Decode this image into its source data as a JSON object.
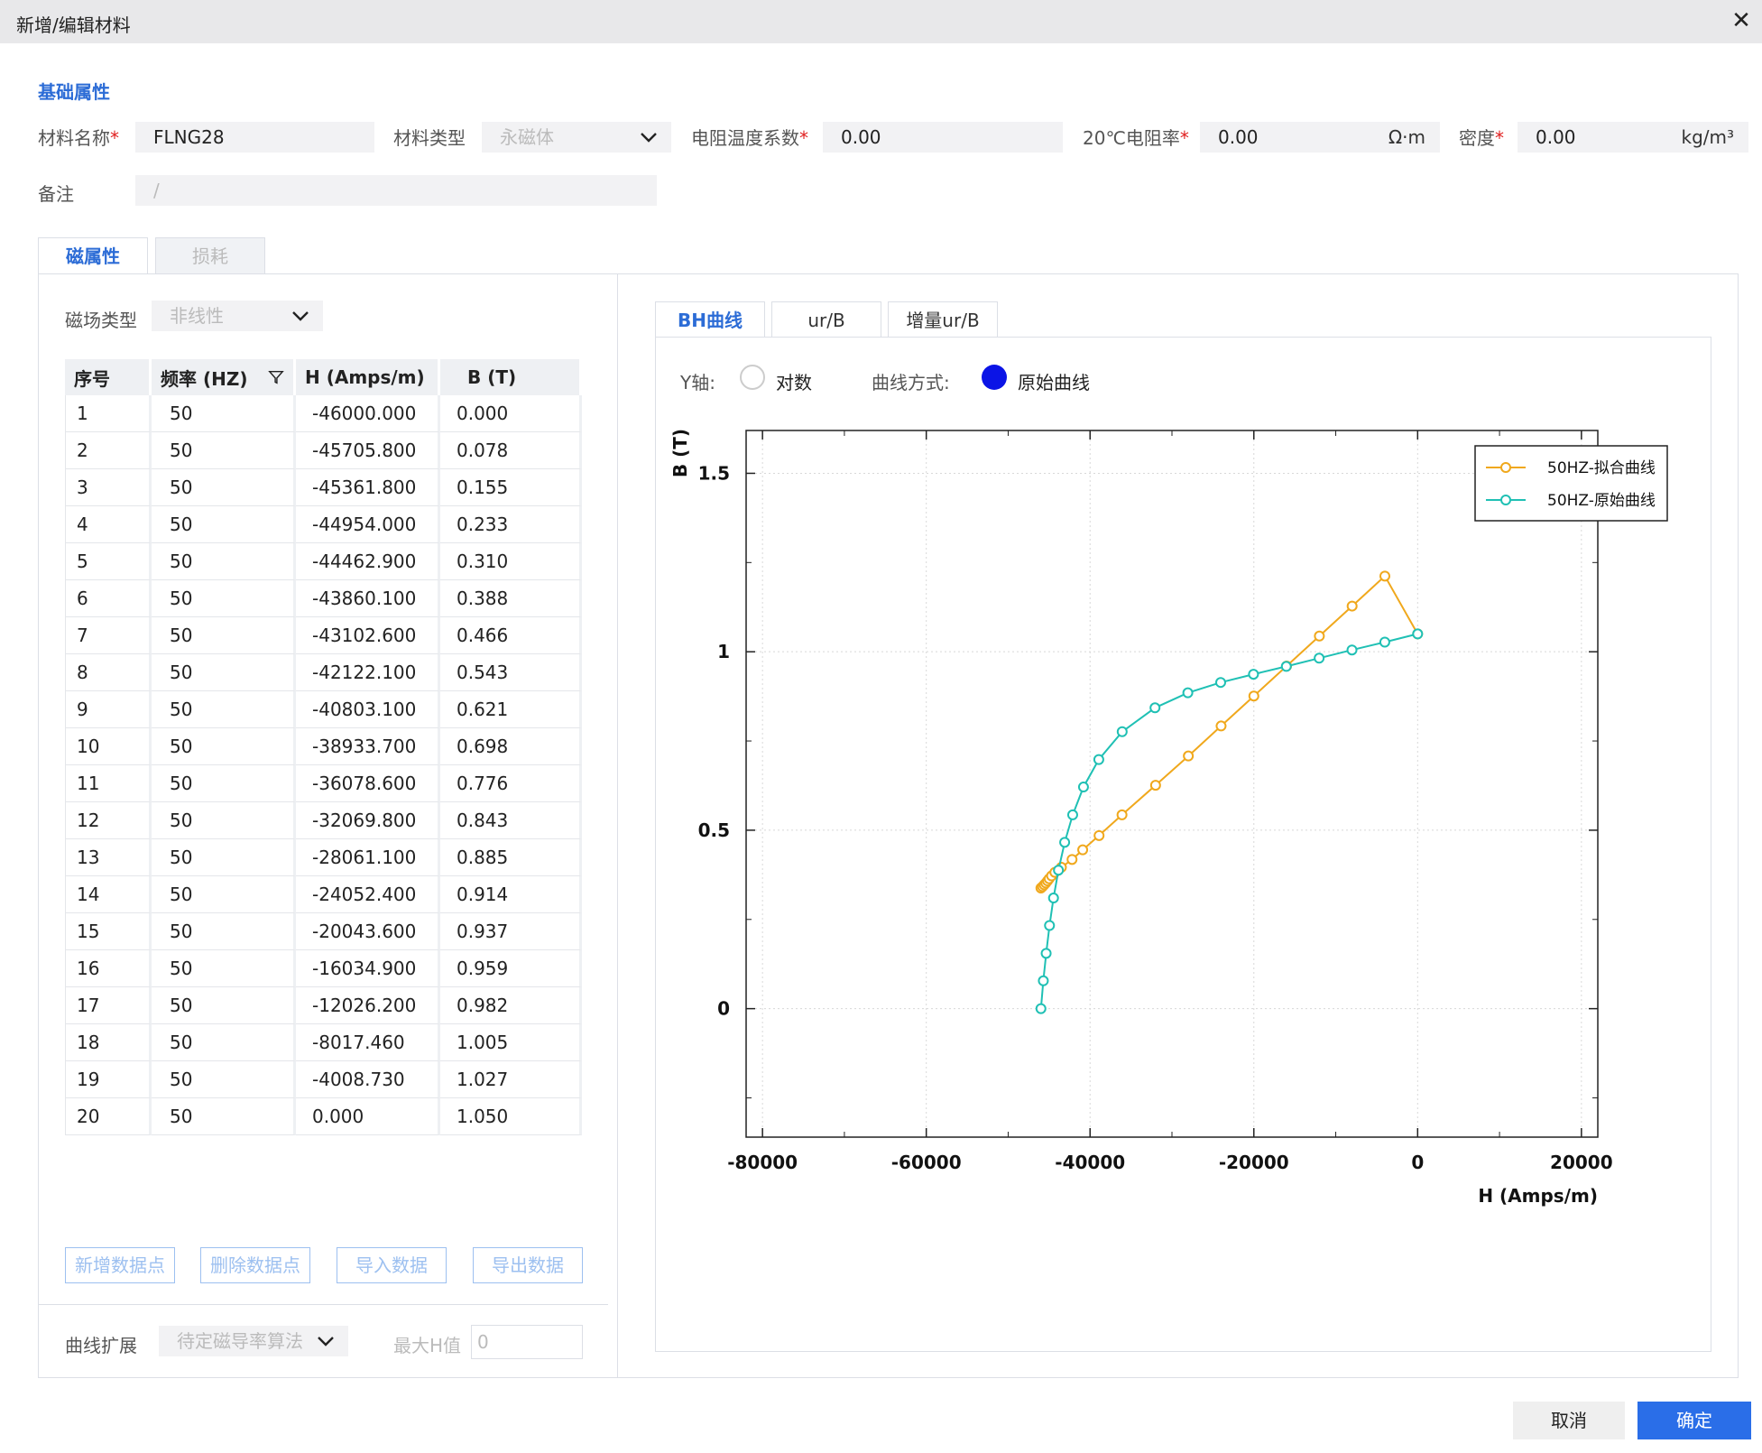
{
  "window": {
    "title": "新增/编辑材料",
    "close_symbol": "✕"
  },
  "basic": {
    "section_title": "基础属性",
    "material_name": {
      "label": "材料名称",
      "required": "*",
      "value": "FLNG28"
    },
    "material_type": {
      "label": "材料类型",
      "value": "永磁体"
    },
    "temp_coeff": {
      "label": "电阻温度系数",
      "required": "*",
      "value": "0.00"
    },
    "resistivity": {
      "label": "20℃电阻率",
      "required": "*",
      "value": "0.00",
      "unit": "Ω·m"
    },
    "density": {
      "label": "密度",
      "required": "*",
      "value": "0.00",
      "unit": "kg/m³"
    },
    "remark": {
      "label": "备注",
      "placeholder": "/"
    }
  },
  "tabs": [
    {
      "label": "磁属性"
    },
    {
      "label": "损耗"
    }
  ],
  "magnetic": {
    "field_type_label": "磁场类型",
    "field_type_value": "非线性",
    "table": {
      "headers": [
        "序号",
        "频率 (HZ)",
        "H (Amps/m)",
        "B (T)"
      ],
      "rows": [
        [
          "1",
          "50",
          "-46000.000",
          "0.000"
        ],
        [
          "2",
          "50",
          "-45705.800",
          "0.078"
        ],
        [
          "3",
          "50",
          "-45361.800",
          "0.155"
        ],
        [
          "4",
          "50",
          "-44954.000",
          "0.233"
        ],
        [
          "5",
          "50",
          "-44462.900",
          "0.310"
        ],
        [
          "6",
          "50",
          "-43860.100",
          "0.388"
        ],
        [
          "7",
          "50",
          "-43102.600",
          "0.466"
        ],
        [
          "8",
          "50",
          "-42122.100",
          "0.543"
        ],
        [
          "9",
          "50",
          "-40803.100",
          "0.621"
        ],
        [
          "10",
          "50",
          "-38933.700",
          "0.698"
        ],
        [
          "11",
          "50",
          "-36078.600",
          "0.776"
        ],
        [
          "12",
          "50",
          "-32069.800",
          "0.843"
        ],
        [
          "13",
          "50",
          "-28061.100",
          "0.885"
        ],
        [
          "14",
          "50",
          "-24052.400",
          "0.914"
        ],
        [
          "15",
          "50",
          "-20043.600",
          "0.937"
        ],
        [
          "16",
          "50",
          "-16034.900",
          "0.959"
        ],
        [
          "17",
          "50",
          "-12026.200",
          "0.982"
        ],
        [
          "18",
          "50",
          "-8017.460",
          "1.005"
        ],
        [
          "19",
          "50",
          "-4008.730",
          "1.027"
        ],
        [
          "20",
          "50",
          "0.000",
          "1.050"
        ]
      ]
    },
    "buttons": {
      "add": "新增数据点",
      "delete": "删除数据点",
      "import": "导入数据",
      "export": "导出数据"
    },
    "curve_ext_label": "曲线扩展",
    "curve_ext_value": "待定磁导率算法",
    "max_h_label": "最大H值",
    "max_h_placeholder": "0"
  },
  "chart_tabs": [
    {
      "label": "BH曲线"
    },
    {
      "label": "ur/B"
    },
    {
      "label": "增量ur/B"
    }
  ],
  "chart_options": {
    "y_axis_label": "Y轴:",
    "y_axis_option": "对数",
    "curve_mode_label": "曲线方式:",
    "curve_mode_option": "原始曲线"
  },
  "chart_data": {
    "type": "line",
    "xlabel": "H (Amps/m)",
    "ylabel": "B (T)",
    "xlim": [
      -82000,
      22000
    ],
    "ylim": [
      -0.36,
      1.62
    ],
    "xticks": [
      -80000,
      -60000,
      -40000,
      -20000,
      0,
      20000
    ],
    "yticks": [
      0,
      0.5,
      1,
      1.5
    ],
    "ytick_labels": [
      "0",
      "0.5",
      "1",
      "1.5"
    ],
    "grid": true,
    "legend_position": "top-right",
    "series": [
      {
        "name": "50HZ-拟合曲线",
        "color": "#f0a81c",
        "points": [
          [
            -46000,
            0.338
          ],
          [
            -45800,
            0.342
          ],
          [
            -45600,
            0.347
          ],
          [
            -45400,
            0.352
          ],
          [
            -45200,
            0.358
          ],
          [
            -45000,
            0.364
          ],
          [
            -44700,
            0.372
          ],
          [
            -44300,
            0.382
          ],
          [
            -43500,
            0.396
          ],
          [
            -42200,
            0.418
          ],
          [
            -40900,
            0.445
          ],
          [
            -38900,
            0.485
          ],
          [
            -36100,
            0.543
          ],
          [
            -32000,
            0.626
          ],
          [
            -28000,
            0.708
          ],
          [
            -24000,
            0.792
          ],
          [
            -20000,
            0.876
          ],
          [
            -16000,
            0.96
          ],
          [
            -12000,
            1.044
          ],
          [
            -8000,
            1.128
          ],
          [
            -4000,
            1.212
          ],
          [
            0,
            1.05
          ]
        ]
      },
      {
        "name": "50HZ-原始曲线",
        "color": "#1fc0b4",
        "points": [
          [
            -46000,
            0.0
          ],
          [
            -45705.8,
            0.078
          ],
          [
            -45361.8,
            0.155
          ],
          [
            -44954.0,
            0.233
          ],
          [
            -44462.9,
            0.31
          ],
          [
            -43860.1,
            0.388
          ],
          [
            -43102.6,
            0.466
          ],
          [
            -42122.1,
            0.543
          ],
          [
            -40803.1,
            0.621
          ],
          [
            -38933.7,
            0.698
          ],
          [
            -36078.6,
            0.776
          ],
          [
            -32069.8,
            0.843
          ],
          [
            -28061.1,
            0.885
          ],
          [
            -24052.4,
            0.914
          ],
          [
            -20043.6,
            0.937
          ],
          [
            -16034.9,
            0.959
          ],
          [
            -12026.2,
            0.982
          ],
          [
            -8017.46,
            1.005
          ],
          [
            -4008.73,
            1.027
          ],
          [
            0,
            1.05
          ]
        ]
      }
    ]
  },
  "footer": {
    "cancel": "取消",
    "confirm": "确定"
  }
}
